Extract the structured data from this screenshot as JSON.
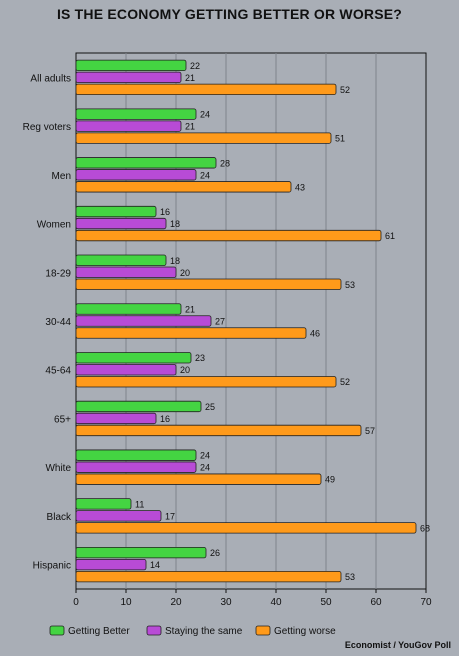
{
  "chart_data": {
    "type": "bar",
    "orientation": "horizontal",
    "title": "IS THE ECONOMY GETTING BETTER OR WORSE?",
    "source": "Economist / YouGov Poll",
    "categories": [
      "All adults",
      "Reg voters",
      "Men",
      "Women",
      "18-29",
      "30-44",
      "45-64",
      "65+",
      "White",
      "Black",
      "Hispanic"
    ],
    "series": [
      {
        "name": "Getting Better",
        "color": "#44d442",
        "values": [
          22,
          24,
          28,
          16,
          18,
          21,
          23,
          25,
          24,
          11,
          26
        ]
      },
      {
        "name": "Staying the same",
        "color": "#b84bd6",
        "values": [
          21,
          21,
          24,
          18,
          20,
          27,
          20,
          16,
          24,
          17,
          14
        ]
      },
      {
        "name": "Getting worse",
        "color": "#ff9a1a",
        "values": [
          52,
          51,
          43,
          61,
          53,
          46,
          52,
          57,
          49,
          68,
          53
        ]
      }
    ],
    "xlim": [
      0,
      70
    ],
    "xticks": [
      0,
      10,
      20,
      30,
      40,
      50,
      60,
      70
    ],
    "grid": true,
    "legend": "bottom"
  }
}
